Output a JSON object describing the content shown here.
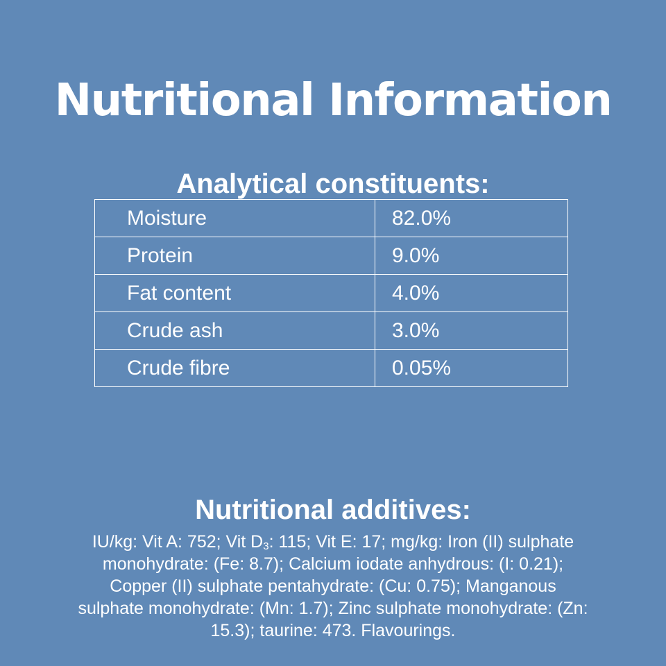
{
  "title": "Nutritional Information",
  "analytical": {
    "heading": "Analytical constituents:",
    "rows": [
      {
        "name": "Moisture",
        "value": "82.0%"
      },
      {
        "name": "Protein",
        "value": "9.0%"
      },
      {
        "name": "Fat content",
        "value": "4.0%"
      },
      {
        "name": "Crude ash",
        "value": "3.0%"
      },
      {
        "name": "Crude fibre",
        "value": "0.05%"
      }
    ]
  },
  "additives": {
    "heading": "Nutritional additives:",
    "text_before_subscript": "IU/kg: Vit A: 752; Vit D",
    "subscript": "3",
    "text_after_subscript": ": 115; Vit E: 17; mg/kg: Iron (II) sulphate monohydrate: (Fe: 8.7); Calcium iodate anhydrous: (I: 0.21); Copper (II) sulphate pentahydrate: (Cu: 0.75); Manganous sulphate monohydrate: (Mn: 1.7); Zinc sulphate monohydrate: (Zn: 15.3); taurine: 473. Flavourings."
  },
  "colors": {
    "background": "#6089b7",
    "text": "#ffffff",
    "table_border": "#ffffff"
  }
}
